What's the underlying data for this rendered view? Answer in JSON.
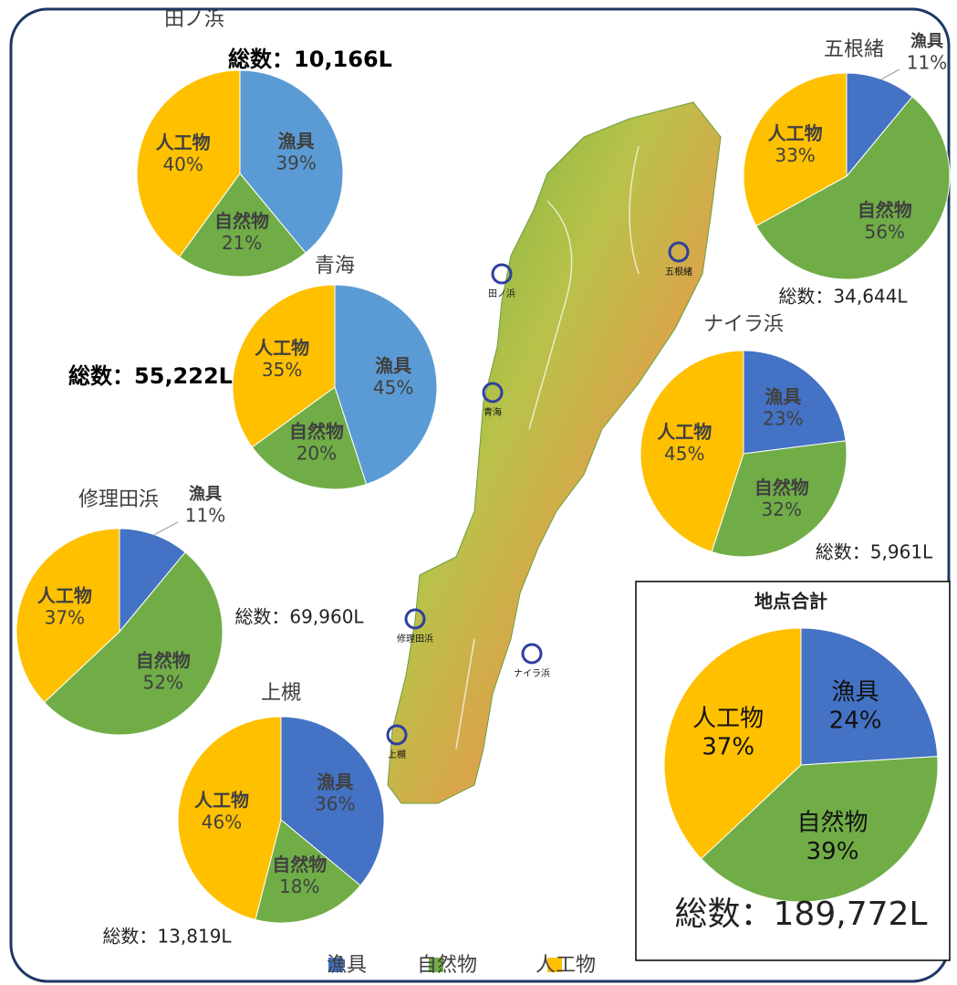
{
  "chart_data": [
    {
      "type": "pie",
      "title": "田ノ浜",
      "total": "総数：10,166L",
      "categories": [
        "漁具",
        "自然物",
        "人工物"
      ],
      "values": [
        39,
        21,
        40
      ],
      "value_labels": [
        "39%",
        "21%",
        "40%"
      ],
      "colors": [
        "#5b9bd5",
        "#70ad47",
        "#ffc000"
      ]
    },
    {
      "type": "pie",
      "title": "青海",
      "total": "総数：55,222L",
      "categories": [
        "漁具",
        "自然物",
        "人工物"
      ],
      "values": [
        45,
        20,
        35
      ],
      "value_labels": [
        "45%",
        "20%",
        "35%"
      ],
      "colors": [
        "#5b9bd5",
        "#70ad47",
        "#ffc000"
      ]
    },
    {
      "type": "pie",
      "title": "五根緒",
      "total": "総数：34,644L",
      "categories": [
        "漁具",
        "自然物",
        "人工物"
      ],
      "values": [
        11,
        56,
        33
      ],
      "value_labels": [
        "11%",
        "56%",
        "33%"
      ],
      "colors": [
        "#4472c4",
        "#70ad47",
        "#ffc000"
      ]
    },
    {
      "type": "pie",
      "title": "ナイラ浜",
      "total": "総数：5,961L",
      "categories": [
        "漁具",
        "自然物",
        "人工物"
      ],
      "values": [
        23,
        32,
        45
      ],
      "value_labels": [
        "23%",
        "32%",
        "45%"
      ],
      "colors": [
        "#4472c4",
        "#70ad47",
        "#ffc000"
      ]
    },
    {
      "type": "pie",
      "title": "修理田浜",
      "total": "総数：69,960L",
      "categories": [
        "漁具",
        "自然物",
        "人工物"
      ],
      "values": [
        11,
        52,
        37
      ],
      "value_labels": [
        "11%",
        "52%",
        "37%"
      ],
      "colors": [
        "#4472c4",
        "#70ad47",
        "#ffc000"
      ]
    },
    {
      "type": "pie",
      "title": "上槻",
      "total": "総数：13,819L",
      "categories": [
        "漁具",
        "自然物",
        "人工物"
      ],
      "values": [
        36,
        18,
        46
      ],
      "value_labels": [
        "36%",
        "18%",
        "46%"
      ],
      "colors": [
        "#4472c4",
        "#70ad47",
        "#ffc000"
      ]
    },
    {
      "type": "pie",
      "title": "地点合計",
      "total": "総数：189,772L",
      "categories": [
        "漁具",
        "自然物",
        "人工物"
      ],
      "values": [
        24,
        39,
        37
      ],
      "value_labels": [
        "24%",
        "39%",
        "37%"
      ],
      "colors": [
        "#4472c4",
        "#70ad47",
        "#ffc000"
      ]
    }
  ],
  "map": {
    "sites": [
      "田ノ浜",
      "五根緒",
      "青海",
      "修理田浜",
      "ナイラ浜",
      "上槻"
    ]
  }
}
